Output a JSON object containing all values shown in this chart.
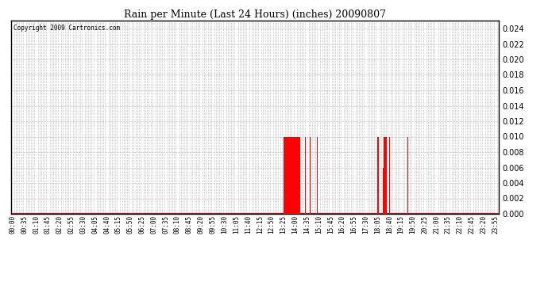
{
  "title": "Rain per Minute (Last 24 Hours) (inches) 20090807",
  "copyright_text": "Copyright 2009 Cartronics.com",
  "ylim": [
    0.0,
    0.025
  ],
  "bar_color": "#ff0000",
  "baseline_color": "#ff0000",
  "background_color": "#ffffff",
  "grid_color": "#c8c8c8",
  "rain_events": [
    {
      "minute": 805,
      "value": 0.01
    },
    {
      "minute": 806,
      "value": 0.01
    },
    {
      "minute": 807,
      "value": 0.01
    },
    {
      "minute": 808,
      "value": 0.01
    },
    {
      "minute": 809,
      "value": 0.01
    },
    {
      "minute": 810,
      "value": 0.006
    },
    {
      "minute": 811,
      "value": 0.01
    },
    {
      "minute": 812,
      "value": 0.006
    },
    {
      "minute": 813,
      "value": 0.01
    },
    {
      "minute": 814,
      "value": 0.01
    },
    {
      "minute": 815,
      "value": 0.01
    },
    {
      "minute": 816,
      "value": 0.01
    },
    {
      "minute": 817,
      "value": 0.01
    },
    {
      "minute": 818,
      "value": 0.01
    },
    {
      "minute": 819,
      "value": 0.01
    },
    {
      "minute": 820,
      "value": 0.01
    },
    {
      "minute": 821,
      "value": 0.01
    },
    {
      "minute": 822,
      "value": 0.01
    },
    {
      "minute": 823,
      "value": 0.01
    },
    {
      "minute": 824,
      "value": 0.006
    },
    {
      "minute": 825,
      "value": 0.01
    },
    {
      "minute": 826,
      "value": 0.01
    },
    {
      "minute": 827,
      "value": 0.01
    },
    {
      "minute": 828,
      "value": 0.01
    },
    {
      "minute": 829,
      "value": 0.01
    },
    {
      "minute": 830,
      "value": 0.01
    },
    {
      "minute": 831,
      "value": 0.01
    },
    {
      "minute": 832,
      "value": 0.01
    },
    {
      "minute": 833,
      "value": 0.01
    },
    {
      "minute": 834,
      "value": 0.01
    },
    {
      "minute": 835,
      "value": 0.01
    },
    {
      "minute": 836,
      "value": 0.006
    },
    {
      "minute": 837,
      "value": 0.01
    },
    {
      "minute": 838,
      "value": 0.01
    },
    {
      "minute": 839,
      "value": 0.01
    },
    {
      "minute": 840,
      "value": 0.01
    },
    {
      "minute": 841,
      "value": 0.01
    },
    {
      "minute": 842,
      "value": 0.01
    },
    {
      "minute": 843,
      "value": 0.01
    },
    {
      "minute": 844,
      "value": 0.01
    },
    {
      "minute": 845,
      "value": 0.01
    },
    {
      "minute": 846,
      "value": 0.01
    },
    {
      "minute": 847,
      "value": 0.01
    },
    {
      "minute": 848,
      "value": 0.01
    },
    {
      "minute": 849,
      "value": 0.01
    },
    {
      "minute": 850,
      "value": 0.006
    },
    {
      "minute": 851,
      "value": 0.01
    },
    {
      "minute": 852,
      "value": 0.006
    },
    {
      "minute": 853,
      "value": 0.01
    },
    {
      "minute": 854,
      "value": 0.01
    },
    {
      "minute": 855,
      "value": 0.01
    },
    {
      "minute": 870,
      "value": 0.01
    },
    {
      "minute": 871,
      "value": 0.006
    },
    {
      "minute": 885,
      "value": 0.01
    },
    {
      "minute": 905,
      "value": 0.01
    },
    {
      "minute": 906,
      "value": 0.01
    },
    {
      "minute": 1085,
      "value": 0.01
    },
    {
      "minute": 1086,
      "value": 0.01
    },
    {
      "minute": 1087,
      "value": 0.01
    },
    {
      "minute": 1088,
      "value": 0.01
    },
    {
      "minute": 1100,
      "value": 0.01
    },
    {
      "minute": 1101,
      "value": 0.01
    },
    {
      "minute": 1102,
      "value": 0.006
    },
    {
      "minute": 1103,
      "value": 0.01
    },
    {
      "minute": 1104,
      "value": 0.01
    },
    {
      "minute": 1105,
      "value": 0.006
    },
    {
      "minute": 1106,
      "value": 0.01
    },
    {
      "minute": 1107,
      "value": 0.01
    },
    {
      "minute": 1108,
      "value": 0.01
    },
    {
      "minute": 1109,
      "value": 0.01
    },
    {
      "minute": 1110,
      "value": 0.01
    },
    {
      "minute": 1111,
      "value": 0.01
    },
    {
      "minute": 1112,
      "value": 0.01
    },
    {
      "minute": 1115,
      "value": 0.006
    },
    {
      "minute": 1120,
      "value": 0.01
    },
    {
      "minute": 1175,
      "value": 0.01
    }
  ],
  "total_minutes": 1440,
  "label_step_minutes": 35
}
